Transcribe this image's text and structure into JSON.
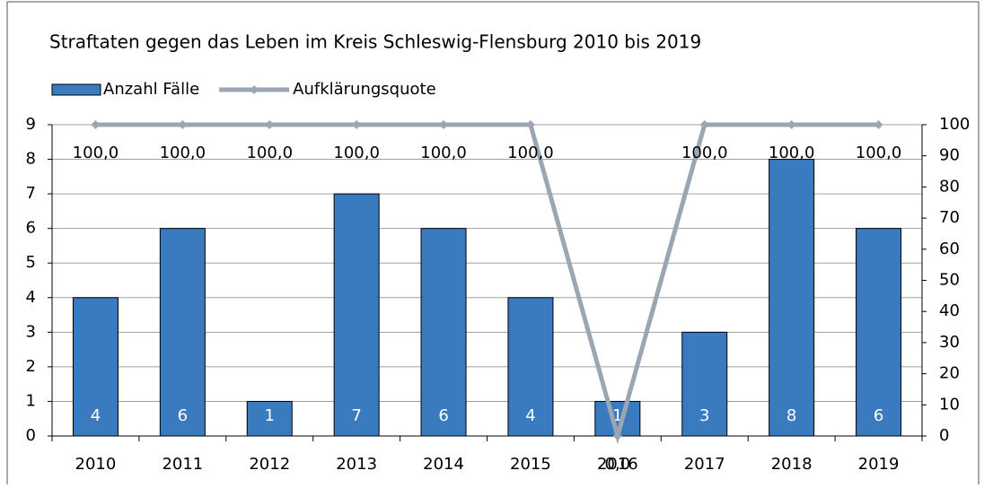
{
  "chart_data": {
    "type": "combo",
    "title": "Straftaten  gegen das Leben im Kreis Schleswig-Flensburg  2010 bis 2019",
    "categories": [
      "2010",
      "2011",
      "2012",
      "2013",
      "2014",
      "2015",
      "2016",
      "2017",
      "2018",
      "2019"
    ],
    "series": [
      {
        "name": "Anzahl Fälle",
        "type": "bar",
        "color": "#3a7bbf",
        "values": [
          4,
          6,
          1,
          7,
          6,
          4,
          1,
          3,
          8,
          6
        ]
      },
      {
        "name": "Aufklärungsquote",
        "type": "line",
        "axis": "y2",
        "color": "#9aa6b2",
        "values": [
          100,
          100,
          100,
          100,
          100,
          100,
          0,
          100,
          100,
          100
        ],
        "value_labels": [
          "100,0",
          "100,0",
          "100,0",
          "100,0",
          "100,0",
          "100,0",
          "0,0",
          "100,0",
          "100,0",
          "100,0"
        ]
      }
    ],
    "ylim": [
      0,
      9
    ],
    "yticks": [
      0,
      1,
      2,
      3,
      4,
      5,
      6,
      7,
      8,
      9
    ],
    "y2lim": [
      0,
      100
    ],
    "y2ticks": [
      0,
      10,
      20,
      30,
      40,
      50,
      60,
      70,
      80,
      90,
      100
    ],
    "grid": true
  }
}
